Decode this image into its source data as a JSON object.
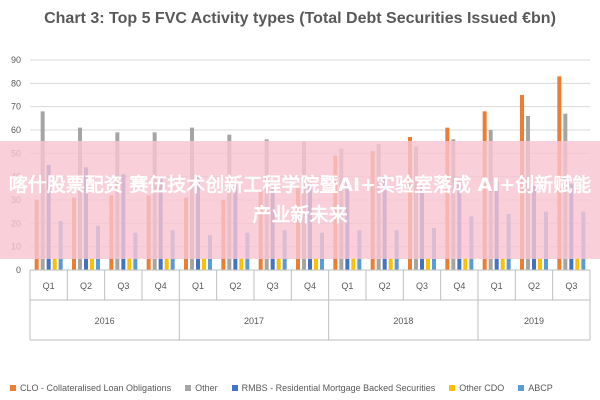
{
  "chart_data": {
    "type": "bar",
    "title": "Chart 3: Top 5 FVC Activity types (Total Debt Securities Issued €bn)",
    "ylim": [
      0,
      90
    ],
    "yticks": [
      "0",
      "10",
      "20",
      "30",
      "40",
      "50",
      "60",
      "70",
      "80",
      "90"
    ],
    "grid": true,
    "legend_position": "bottom",
    "categories": [
      "Q1",
      "Q2",
      "Q3",
      "Q4",
      "Q1",
      "Q2",
      "Q3",
      "Q4",
      "Q1",
      "Q2",
      "Q3",
      "Q4",
      "Q1",
      "Q2",
      "Q3"
    ],
    "year_groups": [
      {
        "label": "2016",
        "count": 4
      },
      {
        "label": "2017",
        "count": 4
      },
      {
        "label": "2018",
        "count": 4
      },
      {
        "label": "2019",
        "count": 3
      }
    ],
    "series": [
      {
        "name": "CLO - Collateralised Loan Obligations",
        "color": "#ED7D31",
        "values": [
          30,
          31,
          32,
          32,
          31,
          30,
          34,
          36,
          49,
          51,
          57,
          61,
          68,
          75,
          83
        ]
      },
      {
        "name": "Other",
        "color": "#A5A5A5",
        "values": [
          68,
          61,
          59,
          59,
          61,
          58,
          56,
          55,
          52,
          54,
          53,
          56,
          60,
          66,
          67
        ]
      },
      {
        "name": "RMBS - Residential Mortgage Backed Securities",
        "color": "#4472C4",
        "values": [
          45,
          44,
          41,
          40,
          40,
          38,
          36,
          37,
          38,
          39,
          37,
          38,
          38,
          36,
          37
        ]
      },
      {
        "name": "Other CDO",
        "color": "#FFC000",
        "values": [
          5,
          5,
          5,
          5,
          5,
          5,
          5,
          5,
          5,
          5,
          5,
          5,
          5,
          5,
          5
        ]
      },
      {
        "name": "ABCP",
        "color": "#5B9BD5",
        "values": [
          21,
          19,
          16,
          17,
          15,
          16,
          17,
          16,
          17,
          17,
          18,
          23,
          24,
          25,
          25
        ]
      }
    ]
  },
  "overlay_banner": "喀什股票配资 赛伍技术创新工程学院暨AI+实验室落成  AI+创新赋能产业新未来"
}
